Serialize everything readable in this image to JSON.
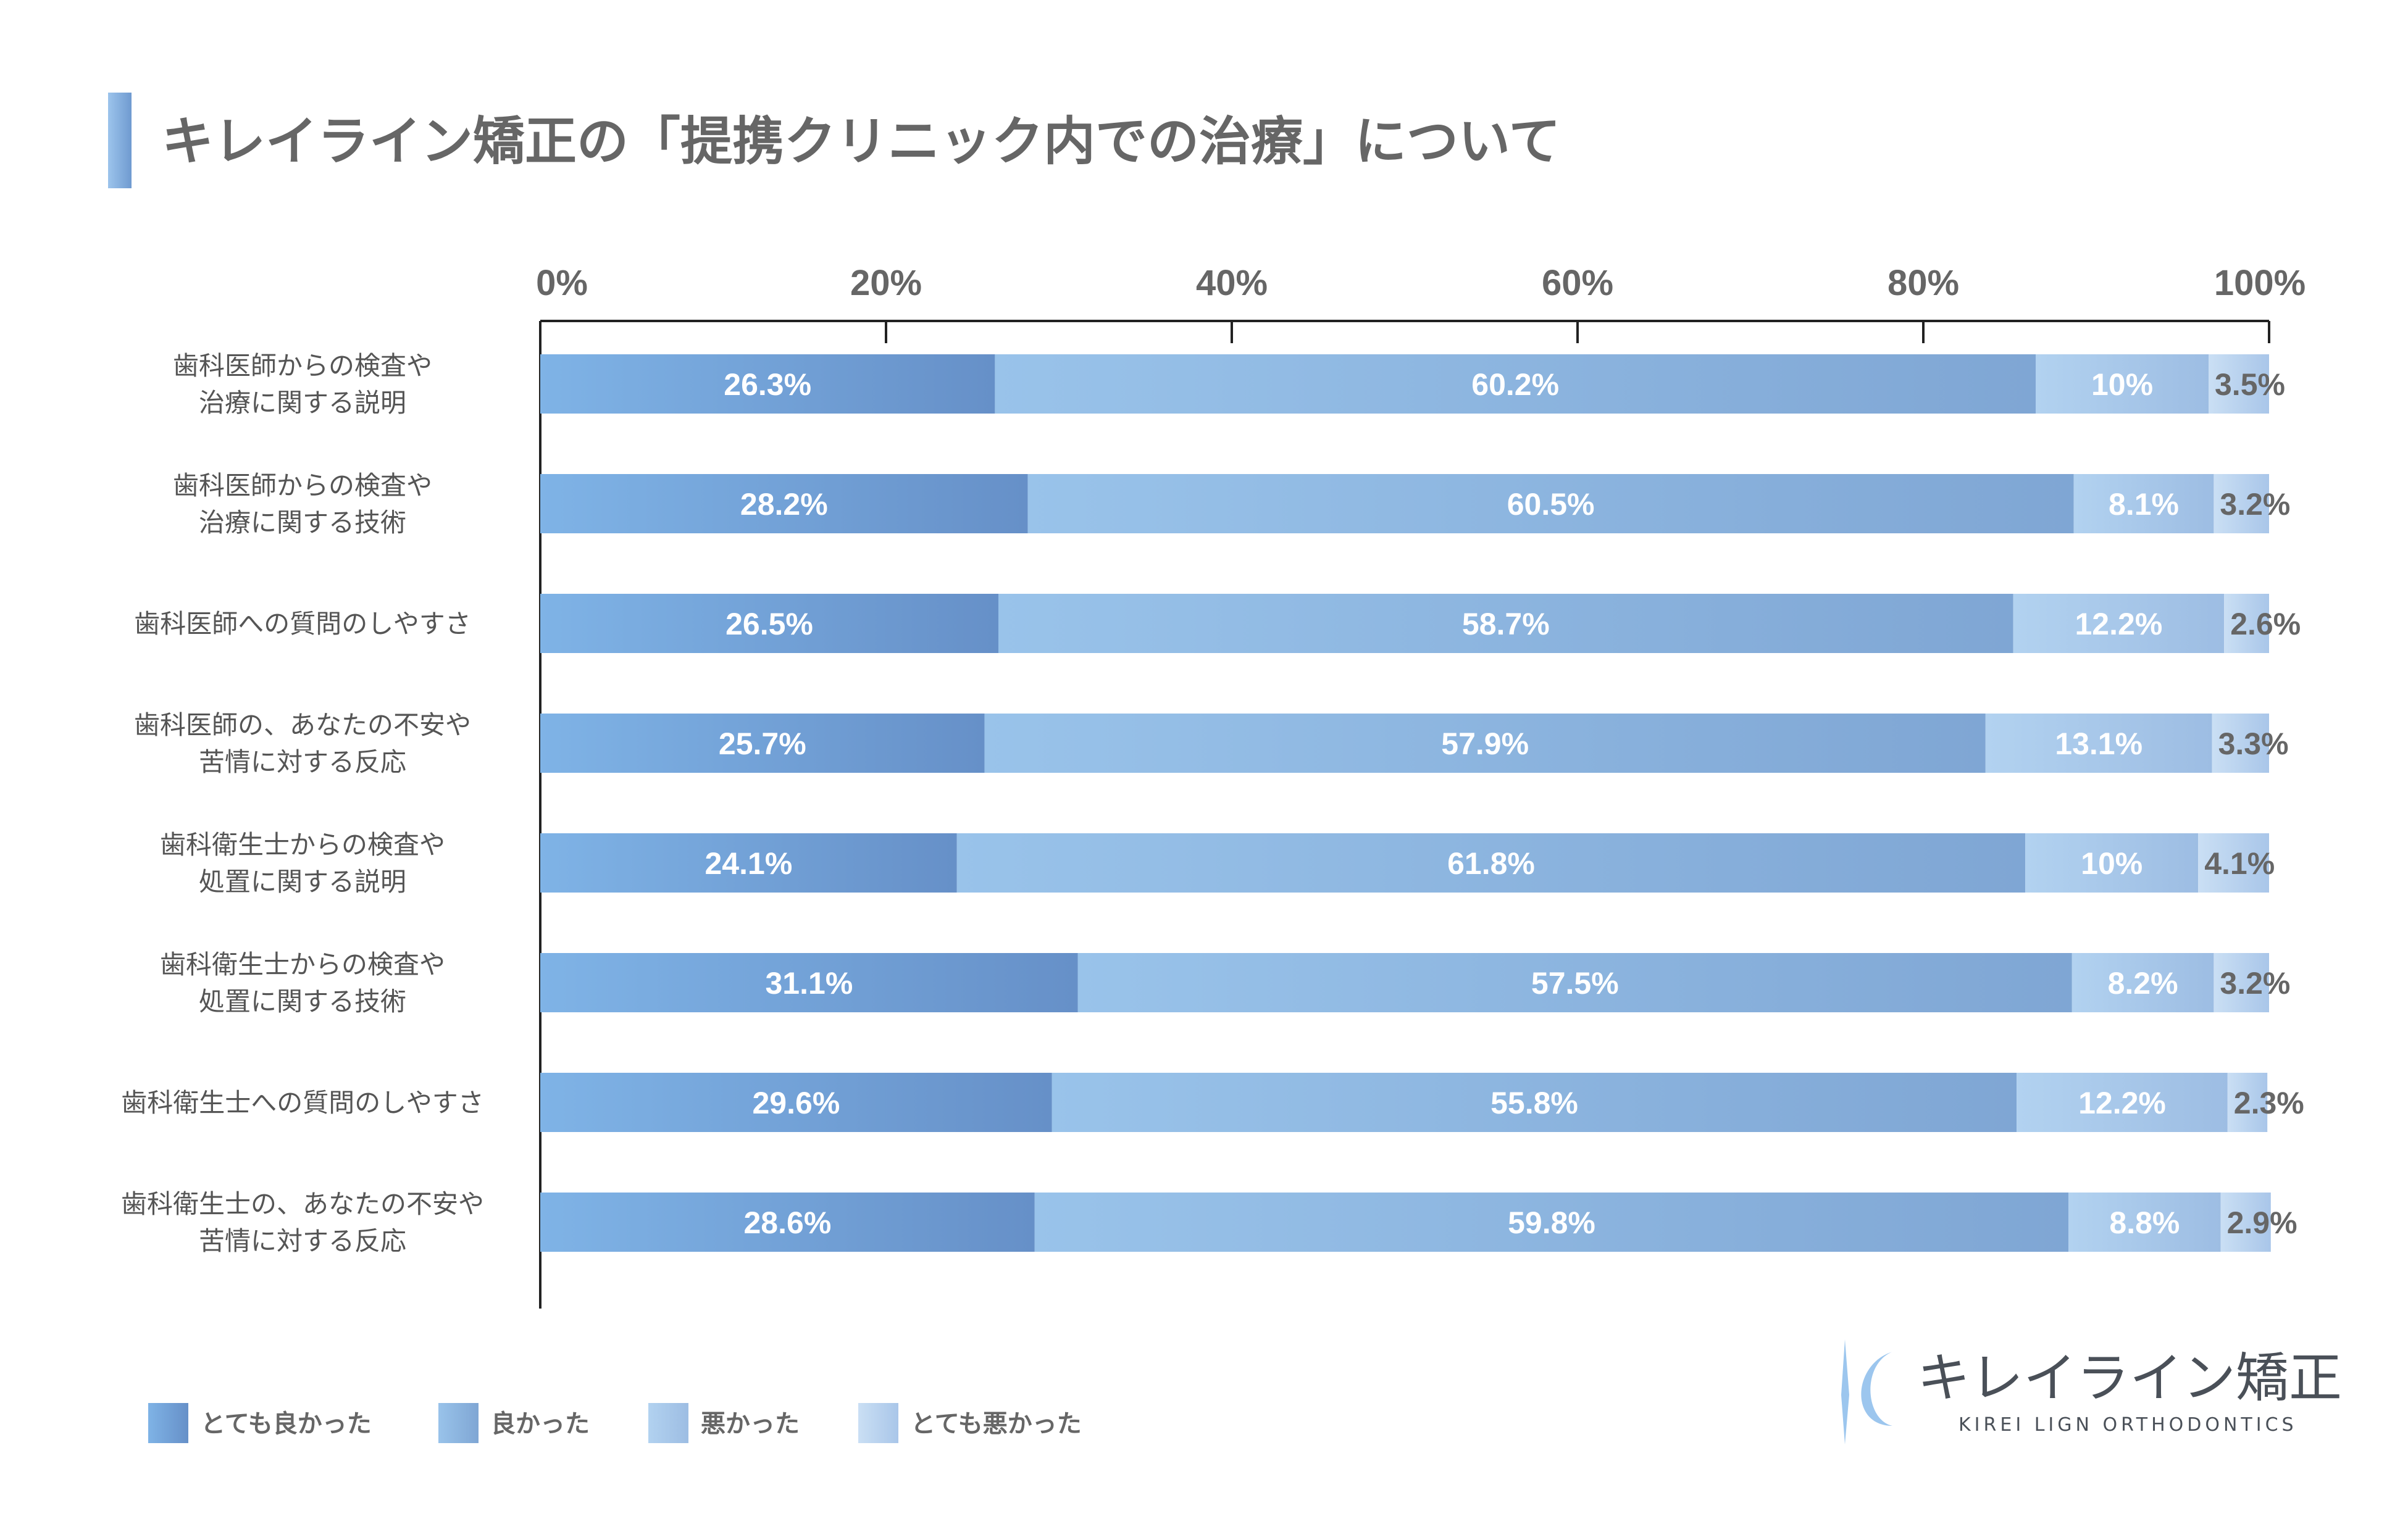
{
  "title": "キレイライン矯正の「提携クリニック内での治療」について",
  "logo": {
    "name_jp": "キレイライン矯正",
    "name_en": "KIREI LIGN ORTHODONTICS"
  },
  "chart_data": {
    "type": "bar",
    "orientation": "horizontal",
    "stacked": true,
    "xlim": [
      0,
      100
    ],
    "x_ticks": [
      "0%",
      "20%",
      "40%",
      "60%",
      "80%",
      "100%"
    ],
    "legend_position": "bottom-left",
    "categories": [
      [
        "歯科医師からの検査や",
        "治療に関する説明"
      ],
      [
        "歯科医師からの検査や",
        "治療に関する技術"
      ],
      [
        "歯科医師への質問のしやすさ"
      ],
      [
        "歯科医師の、あなたの不安や",
        "苦情に対する反応"
      ],
      [
        "歯科衛生士からの検査や",
        "処置に関する説明"
      ],
      [
        "歯科衛生士からの検査や",
        "処置に関する技術"
      ],
      [
        "歯科衛生士への質問のしやすさ"
      ],
      [
        "歯科衛生士の、あなたの不安や",
        "苦情に対する反応"
      ]
    ],
    "series": [
      {
        "name": "とても良かった",
        "values": [
          26.3,
          28.2,
          26.5,
          25.7,
          24.1,
          31.1,
          29.6,
          28.6
        ],
        "labels": [
          "26.3%",
          "28.2%",
          "26.5%",
          "25.7%",
          "24.1%",
          "31.1%",
          "29.6%",
          "28.6%"
        ],
        "colors": [
          "#7fb3e6",
          "#6690c8"
        ]
      },
      {
        "name": "良かった",
        "values": [
          60.2,
          60.5,
          58.7,
          57.9,
          61.8,
          57.5,
          55.8,
          59.8
        ],
        "labels": [
          "60.2%",
          "60.5%",
          "58.7%",
          "57.9%",
          "61.8%",
          "57.5%",
          "55.8%",
          "59.8%"
        ],
        "colors": [
          "#99c3ea",
          "#7fa6d4"
        ]
      },
      {
        "name": "悪かった",
        "values": [
          10,
          8.1,
          12.2,
          13.1,
          10,
          8.2,
          12.2,
          8.8
        ],
        "labels": [
          "10%",
          "8.1%",
          "12.2%",
          "13.1%",
          "10%",
          "8.2%",
          "12.2%",
          "8.8%"
        ],
        "colors": [
          "#b2d2f0",
          "#9dbde3"
        ]
      },
      {
        "name": "とても悪かった",
        "values": [
          3.5,
          3.2,
          2.6,
          3.3,
          4.1,
          3.2,
          2.3,
          2.9
        ],
        "labels": [
          "3.5%",
          "3.2%",
          "2.6%",
          "3.3%",
          "4.1%",
          "3.2%",
          "2.3%",
          "2.9%"
        ],
        "colors": [
          "#cadff4",
          "#a9c6e9"
        ]
      }
    ],
    "label_colors": {
      "inside": "#ffffff",
      "last": "#666666"
    }
  }
}
